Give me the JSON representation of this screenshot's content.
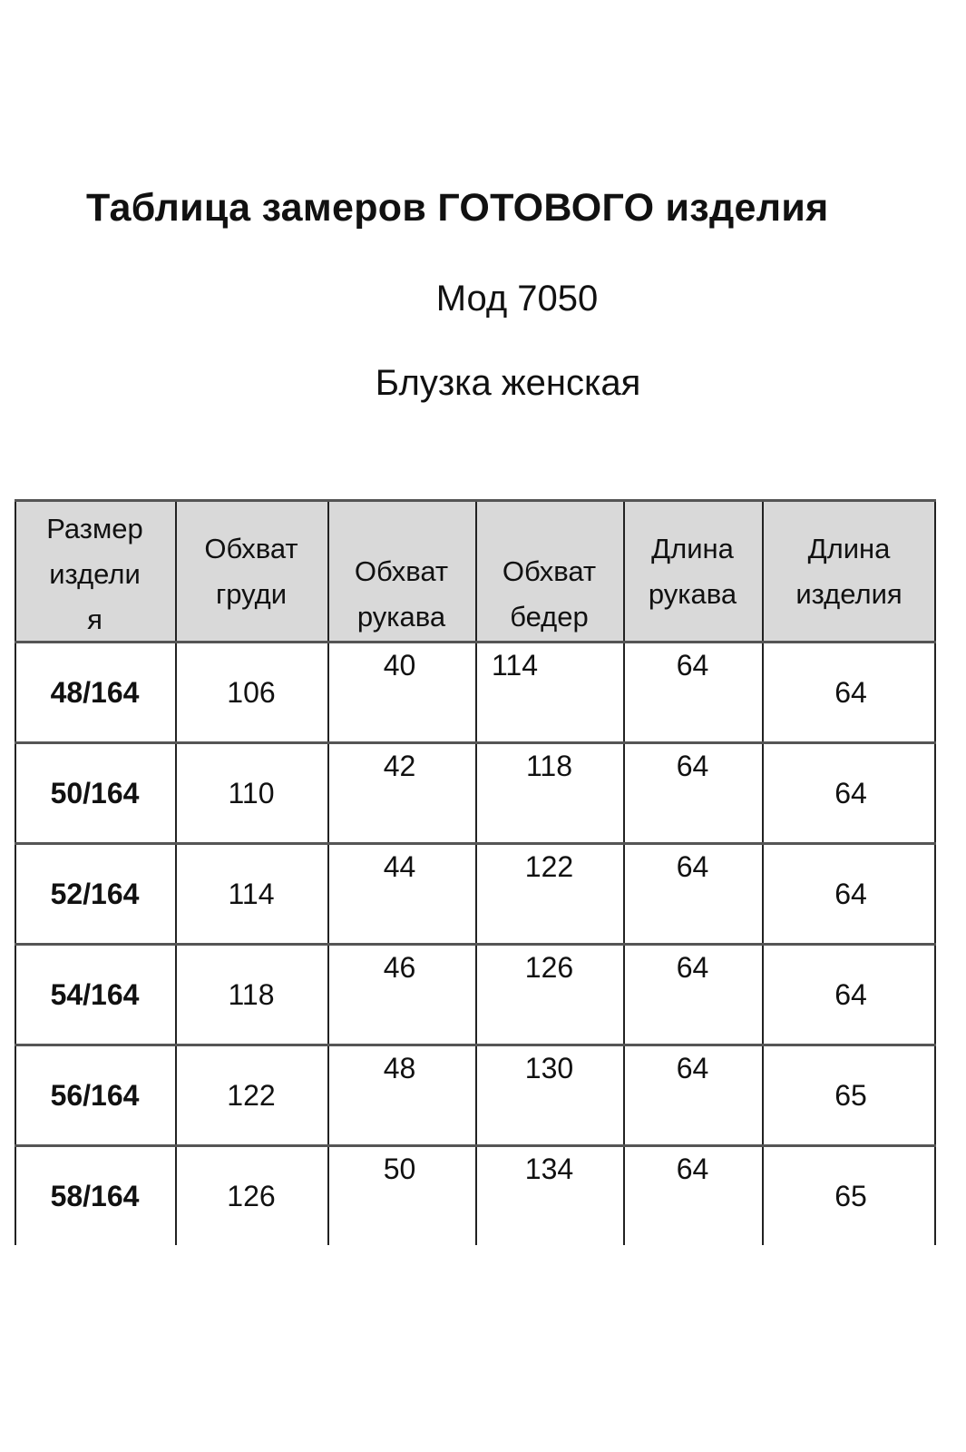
{
  "title": "Таблица замеров ГОТОВОГО изделия",
  "model": "Мод 7050",
  "product": "Блузка женская",
  "table": {
    "headers": [
      [
        "Размер",
        "издели",
        "я"
      ],
      [
        "Обхват",
        "груди"
      ],
      [
        "Обхват",
        "рукава"
      ],
      [
        "Обхват",
        "бедер"
      ],
      [
        "Длина",
        "рукава"
      ],
      [
        "Длина",
        "изделия"
      ]
    ],
    "rows": [
      [
        "48/164",
        "106",
        "40",
        "114",
        "64",
        "64"
      ],
      [
        "50/164",
        "110",
        "42",
        "118",
        "64",
        "64"
      ],
      [
        "52/164",
        "114",
        "44",
        "122",
        "64",
        "64"
      ],
      [
        "54/164",
        "118",
        "46",
        "126",
        "64",
        "64"
      ],
      [
        "56/164",
        "122",
        "48",
        "130",
        "64",
        "65"
      ],
      [
        "58/164",
        "126",
        "50",
        "134",
        "64",
        "65"
      ]
    ],
    "header_bg": "#d9d9d9"
  }
}
